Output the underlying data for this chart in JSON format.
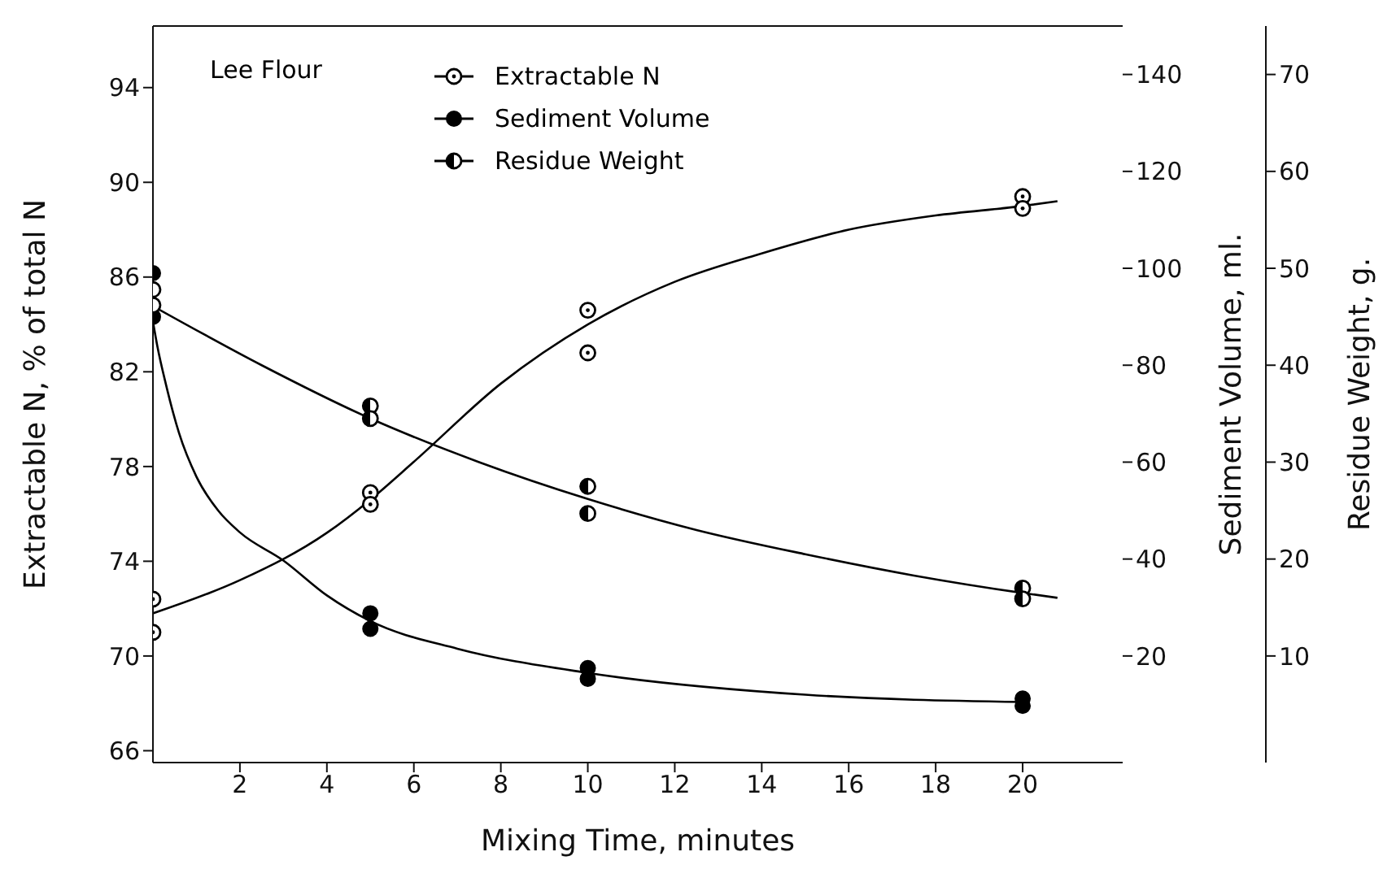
{
  "chart_data": {
    "type": "scatter",
    "xlabel": "Mixing Time, minutes",
    "ylabel": "Extractable N, % of total N",
    "y2label": "Sediment Volume, ml.",
    "y3label": "Residue Weight, g.",
    "annotations": [
      "Lee Flour"
    ],
    "xlim": [
      0,
      22.3
    ],
    "xticks": [
      2,
      4,
      6,
      8,
      10,
      12,
      14,
      16,
      18,
      20
    ],
    "ylim": [
      65.5,
      96.6
    ],
    "yticks": [
      66,
      70,
      74,
      78,
      82,
      86,
      90,
      94
    ],
    "y2lim": [
      -2,
      150
    ],
    "y2ticks": [
      20,
      40,
      60,
      80,
      100,
      120,
      140
    ],
    "y3lim": [
      -1,
      75
    ],
    "y3ticks": [
      10,
      20,
      30,
      40,
      50,
      60,
      70
    ],
    "legend": "top",
    "series": [
      {
        "name": "Extractable N",
        "marker": "circle",
        "color": "#000000",
        "x": [
          0,
          0,
          5,
          5,
          10,
          10,
          20,
          20
        ],
        "values": [
          72.4,
          71.0,
          76.9,
          76.4,
          84.6,
          82.8,
          89.4,
          88.9
        ]
      },
      {
        "name": "Sediment Volume",
        "marker": "circle",
        "color": "#000000",
        "axis": "y2",
        "x": [
          0,
          0,
          5,
          5,
          10,
          10,
          20,
          20
        ],
        "values": [
          99,
          90,
          28.8,
          25.6,
          17.5,
          15.3,
          11.2,
          9.7
        ]
      },
      {
        "name": "Residue Weight",
        "marker": "circle",
        "color": "#000000",
        "axis": "y3",
        "x": [
          0,
          0,
          5,
          5,
          10,
          10,
          20,
          20
        ],
        "values": [
          47.8,
          46.2,
          35.8,
          34.5,
          27.5,
          24.7,
          17.0,
          15.9
        ]
      },
      {
        "type": "line",
        "marker": "none",
        "color": "#000000",
        "x": [
          0,
          2,
          4,
          5,
          6,
          8,
          10,
          12,
          14,
          16,
          18,
          20,
          20.8
        ],
        "values": [
          71.8,
          73.2,
          75.2,
          76.6,
          78.2,
          81.5,
          84.0,
          85.8,
          87.0,
          88.0,
          88.6,
          89.0,
          89.2
        ]
      },
      {
        "type": "line",
        "marker": "none",
        "color": "#000000",
        "axis": "y2",
        "x": [
          0,
          0.1,
          0.3,
          0.6,
          1,
          1.5,
          2,
          3,
          4,
          5,
          7,
          10,
          15,
          20
        ],
        "values": [
          89,
          84,
          76,
          66,
          57,
          50,
          45.5,
          39.7,
          32.5,
          27.2,
          21.5,
          16.5,
          12,
          10.5
        ]
      },
      {
        "type": "line",
        "marker": "none",
        "color": "#000000",
        "axis": "y3",
        "x": [
          0,
          2.5,
          5,
          7.5,
          10,
          12.5,
          15,
          17.5,
          20,
          20.8
        ],
        "values": [
          46.1,
          40,
          34.5,
          30,
          26.2,
          23,
          20.5,
          18.3,
          16.5,
          16
        ]
      }
    ]
  }
}
